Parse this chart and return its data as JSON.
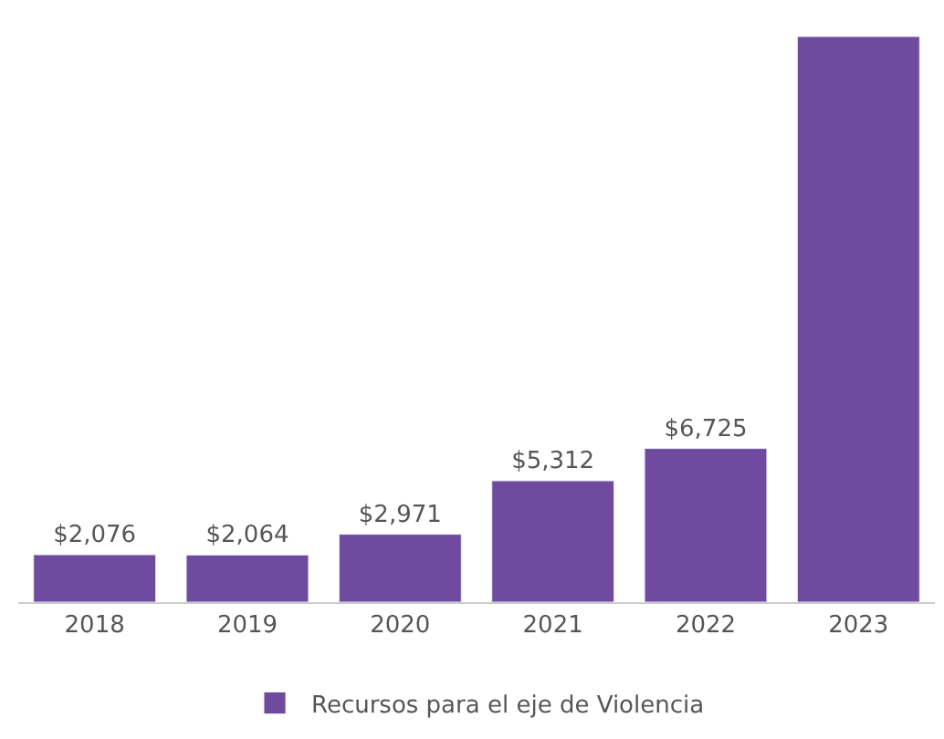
{
  "chart_data": {
    "type": "bar",
    "categories": [
      "2018",
      "2019",
      "2020",
      "2021",
      "2022",
      "2023"
    ],
    "series": [
      {
        "name": "Recursos para el eje de Violencia",
        "color": "#6f4a9e",
        "values": [
          2076,
          2064,
          2971,
          5312,
          6725,
          24760
        ],
        "value_labels": [
          "$2,076",
          "$2,064",
          "$2,971",
          "$5,312",
          "$6,725",
          null
        ]
      }
    ],
    "legend": "bottom"
  }
}
